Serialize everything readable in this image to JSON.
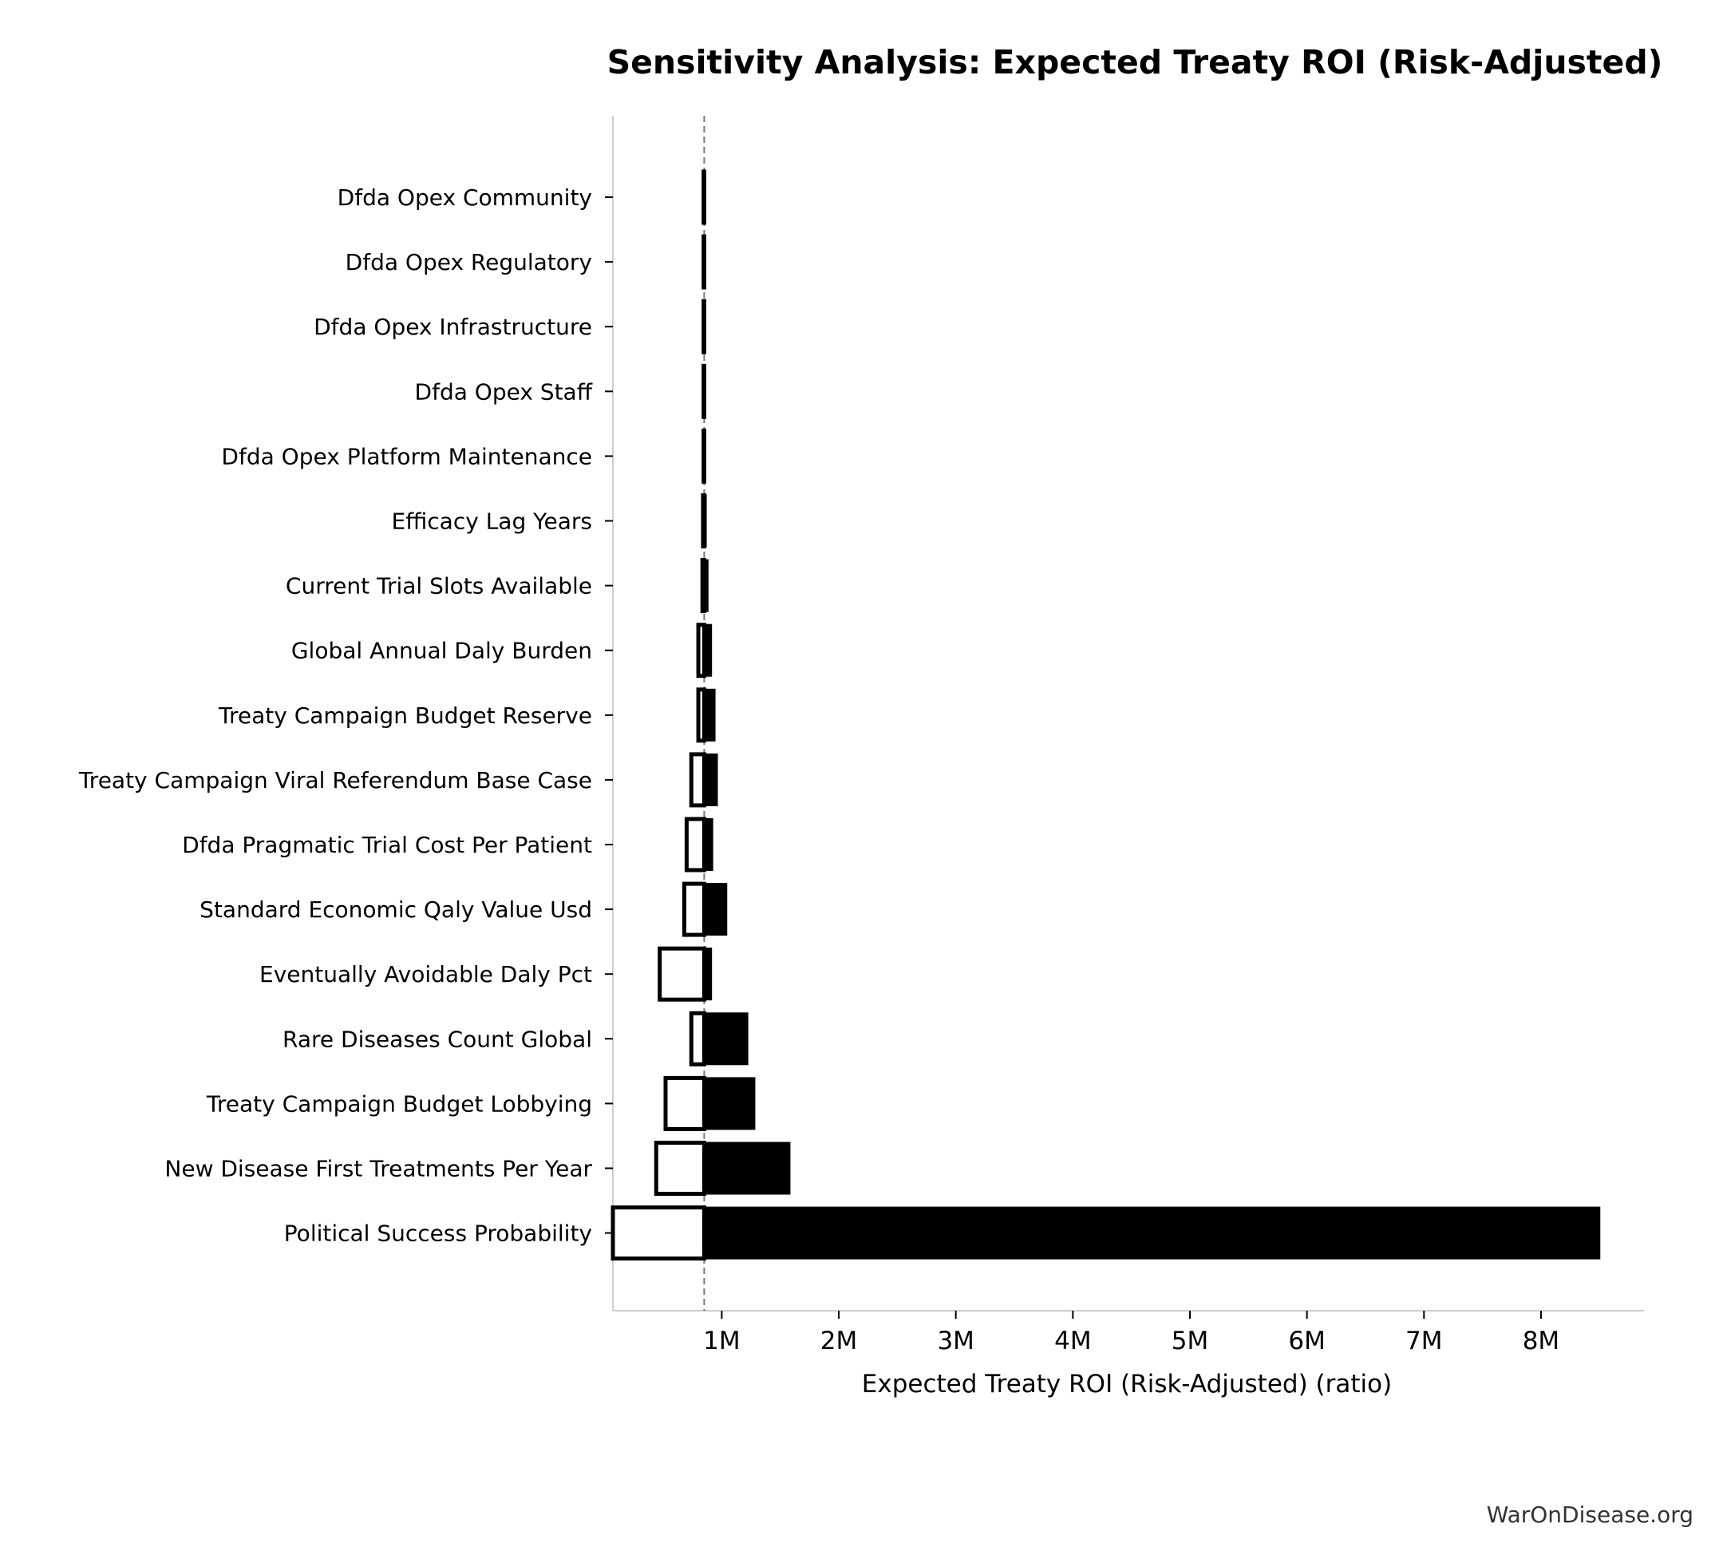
{
  "chart_data": {
    "type": "bar",
    "subtype": "tornado",
    "title": "Sensitivity Analysis: Expected Treaty ROI (Risk-Adjusted)",
    "xlabel": "Expected Treaty ROI (Risk-Adjusted) (ratio)",
    "ylabel": "",
    "base_value": 850000,
    "xlim": [
      70000,
      8880000
    ],
    "x_ticks": [
      1000000,
      2000000,
      3000000,
      4000000,
      5000000,
      6000000,
      7000000,
      8000000
    ],
    "x_tick_labels": [
      "1M",
      "2M",
      "3M",
      "4M",
      "5M",
      "6M",
      "7M",
      "8M"
    ],
    "legend": "none",
    "grid": false,
    "colors": {
      "high": "#000000",
      "low": "#ffffff",
      "edge": "#000000",
      "baseline": "#777777"
    },
    "categories": [
      "Dfda Opex Community",
      "Dfda Opex Regulatory",
      "Dfda Opex Infrastructure",
      "Dfda Opex Staff",
      "Dfda Opex Platform Maintenance",
      "Efficacy Lag Years",
      "Current Trial Slots Available",
      "Global Annual Daly Burden",
      "Treaty Campaign Budget Reserve",
      "Treaty Campaign Viral Referendum Base Case",
      "Dfda Pragmatic Trial Cost Per Patient",
      "Standard Economic Qaly Value Usd",
      "Eventually Avoidable Daly Pct",
      "Rare Diseases Count Global",
      "Treaty Campaign Budget Lobbying",
      "New Disease First Treatments Per Year",
      "Political Success Probability"
    ],
    "series": [
      {
        "name": "",
        "values": [
          845000,
          845000,
          845000,
          845000,
          845000,
          840000,
          835000,
          800000,
          800000,
          740000,
          700000,
          680000,
          470000,
          740000,
          520000,
          440000,
          70000
        ]
      },
      {
        "name": "",
        "values": [
          855000,
          855000,
          855000,
          855000,
          855000,
          865000,
          880000,
          910000,
          940000,
          960000,
          920000,
          1040000,
          910000,
          1220000,
          1280000,
          1580000,
          8500000
        ]
      }
    ]
  },
  "watermark": "WarOnDisease.org"
}
